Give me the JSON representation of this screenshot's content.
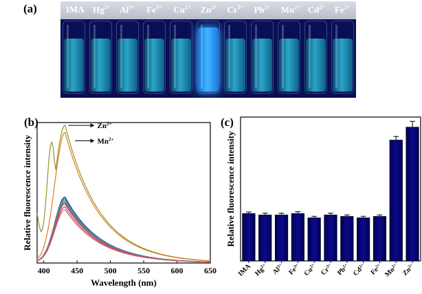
{
  "panels": {
    "a": "(a)",
    "b": "(b)",
    "c": "(c)"
  },
  "photo": {
    "labels": [
      {
        "base": "IMA",
        "sup": ""
      },
      {
        "base": "Hg",
        "sup": "2+"
      },
      {
        "base": "Al",
        "sup": "3+"
      },
      {
        "base": "Fe",
        "sup": "3+"
      },
      {
        "base": "Cu",
        "sup": "2+"
      },
      {
        "base": "Zn",
        "sup": "2+"
      },
      {
        "base": "Cr",
        "sup": "3+"
      },
      {
        "base": "Pb",
        "sup": "2+"
      },
      {
        "base": "Mn",
        "sup": "2+"
      },
      {
        "base": "Cd",
        "sup": "2+"
      },
      {
        "base": "Fe",
        "sup": "2+"
      }
    ],
    "liquid_glow": [
      "dim",
      "dim",
      "dim",
      "dim",
      "dim",
      "bright",
      "dim",
      "dim",
      "dim",
      "dim",
      "dim"
    ],
    "colors": {
      "background": "#0a0f55",
      "liquid": "#2aa6c8",
      "bright_liquid": "#3fb6ff"
    }
  },
  "chart_data": [
    {
      "type": "line",
      "panel": "b",
      "xlabel": "Wavelength (nm)",
      "ylabel": "Relative fluorescence intensity",
      "xlim": [
        390,
        650
      ],
      "ylim": [
        0,
        1.0
      ],
      "xticks": [
        400,
        450,
        500,
        550,
        600,
        650
      ],
      "annotations": [
        {
          "text": "Zn",
          "sup": "2+",
          "target_series": "Zn2+"
        },
        {
          "text": "Mn",
          "sup": "2+",
          "target_series": "Mn2+"
        }
      ],
      "series": [
        {
          "name": "Zn2+",
          "color": "#8b9a22",
          "peak": 0.98,
          "onset": 0.33,
          "hump": 0.84
        },
        {
          "name": "Mn2+",
          "color": "#e07a1c",
          "peak": 0.93,
          "onset": 0.02,
          "hump": 0.0
        },
        {
          "name": "IMA",
          "color": "#1f3b8c",
          "peak": 0.47,
          "onset": 0.02,
          "hump": 0.0
        },
        {
          "name": "Hg2+",
          "color": "#2c6fb5",
          "peak": 0.46,
          "onset": 0.02,
          "hump": 0.0
        },
        {
          "name": "Al3+",
          "color": "#3a9bc2",
          "peak": 0.45,
          "onset": 0.02,
          "hump": 0.0
        },
        {
          "name": "Fe3+",
          "color": "#4bb3a0",
          "peak": 0.45,
          "onset": 0.02,
          "hump": 0.0
        },
        {
          "name": "Cu2+",
          "color": "#6d7f3a",
          "peak": 0.44,
          "onset": 0.02,
          "hump": 0.0
        },
        {
          "name": "Cr3+",
          "color": "#7f5aa8",
          "peak": 0.43,
          "onset": 0.02,
          "hump": 0.0
        },
        {
          "name": "Pb2+",
          "color": "#c8507a",
          "peak": 0.42,
          "onset": 0.02,
          "hump": 0.0
        },
        {
          "name": "Cd2+",
          "color": "#b44b4b",
          "peak": 0.4,
          "onset": 0.02,
          "hump": 0.0
        },
        {
          "name": "Fe2+",
          "color": "#d46a6a",
          "peak": 0.38,
          "onset": 0.02,
          "hump": 0.0
        }
      ]
    },
    {
      "type": "bar",
      "panel": "c",
      "ylabel": "Relative fluorescence intensity",
      "ylim": [
        0,
        1.0
      ],
      "bar_color": "#0a0a8a",
      "categories": [
        {
          "base": "IMA",
          "sup": ""
        },
        {
          "base": "Hg",
          "sup": "2+"
        },
        {
          "base": "Al",
          "sup": "3+"
        },
        {
          "base": "Fe",
          "sup": "3+"
        },
        {
          "base": "Cu",
          "sup": "2+"
        },
        {
          "base": "Cr",
          "sup": "3+"
        },
        {
          "base": "Pb",
          "sup": "2+"
        },
        {
          "base": "Cd",
          "sup": "2+"
        },
        {
          "base": "Fe",
          "sup": "2+"
        },
        {
          "base": "Mn",
          "sup": "2+"
        },
        {
          "base": "Zn",
          "sup": "2+"
        }
      ],
      "values": [
        0.33,
        0.32,
        0.32,
        0.33,
        0.3,
        0.32,
        0.31,
        0.3,
        0.31,
        0.84,
        0.93
      ],
      "errors": [
        0.01,
        0.012,
        0.012,
        0.012,
        0.01,
        0.012,
        0.01,
        0.01,
        0.01,
        0.025,
        0.04
      ]
    }
  ]
}
